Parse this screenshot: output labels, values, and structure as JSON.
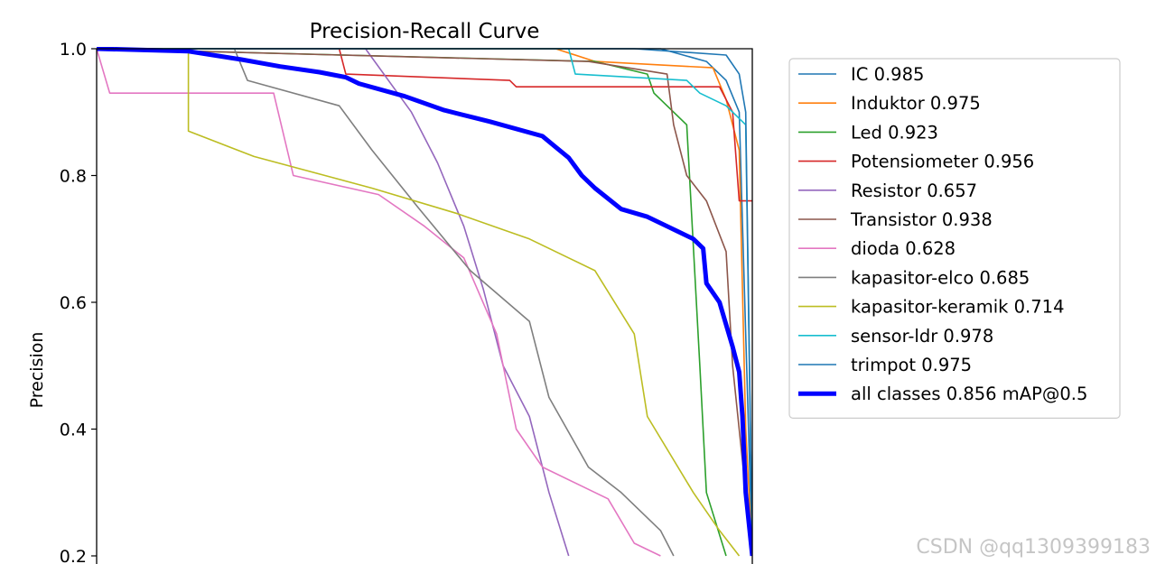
{
  "watermark": "CSDN @qq1309399183",
  "chart_data": {
    "type": "line",
    "title": "Precision-Recall Curve",
    "xlabel": "",
    "ylabel": "Precision",
    "xlim": [
      0,
      1
    ],
    "ylim_visible": [
      0.2,
      1.0
    ],
    "yticks": [
      1.0,
      0.8,
      0.6,
      0.4,
      0.2
    ],
    "ytick_labels": [
      "1.0",
      "0.8",
      "0.6",
      "0.4",
      "0.2"
    ],
    "grid": false,
    "legend_position": "outside-right",
    "series": [
      {
        "name": "IC 0.985",
        "color": "#1f77b4",
        "points": [
          [
            0,
            1.0
          ],
          [
            0.45,
            1.0
          ],
          [
            0.86,
            1.0
          ],
          [
            0.93,
            0.98
          ],
          [
            0.96,
            0.95
          ],
          [
            0.98,
            0.9
          ],
          [
            0.99,
            0.55
          ],
          [
            1.0,
            0.2
          ]
        ]
      },
      {
        "name": "Induktor 0.975",
        "color": "#ff7f0e",
        "points": [
          [
            0,
            1.0
          ],
          [
            0.7,
            1.0
          ],
          [
            0.76,
            0.98
          ],
          [
            0.94,
            0.97
          ],
          [
            0.96,
            0.92
          ],
          [
            0.98,
            0.84
          ],
          [
            0.99,
            0.4
          ],
          [
            1.0,
            0.2
          ]
        ]
      },
      {
        "name": "Led 0.923",
        "color": "#2ca02c",
        "points": [
          [
            0,
            1.0
          ],
          [
            0.76,
            0.98
          ],
          [
            0.84,
            0.96
          ],
          [
            0.85,
            0.93
          ],
          [
            0.9,
            0.88
          ],
          [
            0.92,
            0.5
          ],
          [
            0.93,
            0.3
          ],
          [
            0.96,
            0.2
          ]
        ]
      },
      {
        "name": "Potensiometer 0.956",
        "color": "#d62728",
        "points": [
          [
            0,
            1.0
          ],
          [
            0.37,
            1.0
          ],
          [
            0.38,
            0.96
          ],
          [
            0.63,
            0.95
          ],
          [
            0.64,
            0.94
          ],
          [
            0.82,
            0.94
          ],
          [
            0.95,
            0.94
          ],
          [
            0.97,
            0.9
          ],
          [
            0.98,
            0.76
          ],
          [
            1.0,
            0.76
          ]
        ]
      },
      {
        "name": "Resistor 0.657",
        "color": "#9467bd",
        "points": [
          [
            0,
            1.0
          ],
          [
            0.41,
            1.0
          ],
          [
            0.48,
            0.9
          ],
          [
            0.52,
            0.82
          ],
          [
            0.56,
            0.72
          ],
          [
            0.59,
            0.62
          ],
          [
            0.62,
            0.5
          ],
          [
            0.66,
            0.42
          ],
          [
            0.69,
            0.3
          ],
          [
            0.72,
            0.2
          ]
        ]
      },
      {
        "name": "Transistor 0.938",
        "color": "#8c564b",
        "points": [
          [
            0,
            1.0
          ],
          [
            0.75,
            0.98
          ],
          [
            0.87,
            0.96
          ],
          [
            0.88,
            0.88
          ],
          [
            0.9,
            0.8
          ],
          [
            0.93,
            0.76
          ],
          [
            0.96,
            0.68
          ],
          [
            0.97,
            0.5
          ],
          [
            1.0,
            0.2
          ]
        ]
      },
      {
        "name": "dioda 0.628",
        "color": "#e377c2",
        "points": [
          [
            0,
            1.0
          ],
          [
            0.02,
            0.93
          ],
          [
            0.27,
            0.93
          ],
          [
            0.3,
            0.8
          ],
          [
            0.43,
            0.77
          ],
          [
            0.5,
            0.72
          ],
          [
            0.56,
            0.67
          ],
          [
            0.61,
            0.55
          ],
          [
            0.64,
            0.4
          ],
          [
            0.68,
            0.34
          ],
          [
            0.78,
            0.29
          ],
          [
            0.82,
            0.22
          ],
          [
            0.86,
            0.2
          ]
        ]
      },
      {
        "name": "kapasitor-elco 0.685",
        "color": "#7f7f7f",
        "points": [
          [
            0,
            1.0
          ],
          [
            0.21,
            1.0
          ],
          [
            0.23,
            0.95
          ],
          [
            0.37,
            0.91
          ],
          [
            0.42,
            0.84
          ],
          [
            0.49,
            0.75
          ],
          [
            0.57,
            0.65
          ],
          [
            0.66,
            0.57
          ],
          [
            0.69,
            0.45
          ],
          [
            0.75,
            0.34
          ],
          [
            0.8,
            0.3
          ],
          [
            0.86,
            0.24
          ],
          [
            0.88,
            0.2
          ]
        ]
      },
      {
        "name": "kapasitor-keramik 0.714",
        "color": "#bcbd22",
        "points": [
          [
            0,
            1.0
          ],
          [
            0.14,
            1.0
          ],
          [
            0.14,
            0.87
          ],
          [
            0.24,
            0.83
          ],
          [
            0.42,
            0.78
          ],
          [
            0.55,
            0.74
          ],
          [
            0.66,
            0.7
          ],
          [
            0.76,
            0.65
          ],
          [
            0.82,
            0.55
          ],
          [
            0.84,
            0.42
          ],
          [
            0.91,
            0.3
          ],
          [
            0.95,
            0.24
          ],
          [
            0.98,
            0.2
          ]
        ]
      },
      {
        "name": "sensor-ldr 0.978",
        "color": "#17becf",
        "points": [
          [
            0,
            1.0
          ],
          [
            0.72,
            1.0
          ],
          [
            0.73,
            0.96
          ],
          [
            0.9,
            0.95
          ],
          [
            0.92,
            0.93
          ],
          [
            0.96,
            0.91
          ],
          [
            0.99,
            0.88
          ],
          [
            1.0,
            0.2
          ]
        ]
      },
      {
        "name": "trimpot 0.975",
        "color": "#1f77b4",
        "points": [
          [
            0,
            1.0
          ],
          [
            0.82,
            1.0
          ],
          [
            0.96,
            0.99
          ],
          [
            0.98,
            0.96
          ],
          [
            0.99,
            0.9
          ],
          [
            1.0,
            0.2
          ]
        ]
      },
      {
        "name": "all classes 0.856 mAP@0.5",
        "color": "#0000ff",
        "bold": true,
        "points": [
          [
            0,
            1.0
          ],
          [
            0.14,
            0.996
          ],
          [
            0.22,
            0.983
          ],
          [
            0.28,
            0.972
          ],
          [
            0.34,
            0.963
          ],
          [
            0.38,
            0.955
          ],
          [
            0.4,
            0.945
          ],
          [
            0.47,
            0.925
          ],
          [
            0.53,
            0.903
          ],
          [
            0.6,
            0.885
          ],
          [
            0.68,
            0.862
          ],
          [
            0.7,
            0.845
          ],
          [
            0.72,
            0.828
          ],
          [
            0.74,
            0.8
          ],
          [
            0.76,
            0.78
          ],
          [
            0.8,
            0.747
          ],
          [
            0.84,
            0.735
          ],
          [
            0.88,
            0.715
          ],
          [
            0.91,
            0.7
          ],
          [
            0.925,
            0.685
          ],
          [
            0.93,
            0.63
          ],
          [
            0.95,
            0.6
          ],
          [
            0.97,
            0.53
          ],
          [
            0.98,
            0.49
          ],
          [
            0.985,
            0.42
          ],
          [
            0.99,
            0.3
          ],
          [
            1.0,
            0.2
          ]
        ]
      }
    ]
  }
}
